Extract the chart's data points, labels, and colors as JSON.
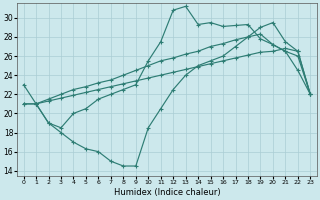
{
  "xlabel": "Humidex (Indice chaleur)",
  "bg_color": "#cce8ec",
  "grid_color": "#aacdd4",
  "line_color": "#2e7d74",
  "xlim": [
    -0.5,
    23.5
  ],
  "ylim": [
    13.5,
    31.5
  ],
  "xticks": [
    0,
    1,
    2,
    3,
    4,
    5,
    6,
    7,
    8,
    9,
    10,
    11,
    12,
    13,
    14,
    15,
    16,
    17,
    18,
    19,
    20,
    21,
    22,
    23
  ],
  "yticks": [
    14,
    16,
    18,
    20,
    22,
    24,
    26,
    28,
    30
  ],
  "curve_a_x": [
    0,
    1,
    2,
    3,
    4,
    5,
    6,
    7,
    8,
    9,
    10,
    11,
    12,
    13,
    14,
    15,
    16,
    17,
    18,
    19,
    20,
    21,
    22,
    23
  ],
  "curve_a_y": [
    23.0,
    21.0,
    19.0,
    18.5,
    20.0,
    20.5,
    21.5,
    22.0,
    22.5,
    23.0,
    25.5,
    27.5,
    30.8,
    31.2,
    29.3,
    29.5,
    29.1,
    29.2,
    29.3,
    27.8,
    27.2,
    26.5,
    24.5,
    22.0
  ],
  "curve_b_x": [
    0,
    1,
    2,
    3,
    4,
    5,
    6,
    7,
    8,
    9,
    10,
    11,
    12,
    13,
    14,
    15,
    16,
    17,
    18,
    19,
    20,
    21,
    22,
    23
  ],
  "curve_b_y": [
    21.0,
    21.0,
    21.5,
    22.0,
    22.5,
    22.8,
    23.2,
    23.5,
    24.0,
    24.5,
    25.0,
    25.5,
    25.8,
    26.2,
    26.5,
    27.0,
    27.3,
    27.7,
    28.0,
    28.3,
    27.2,
    26.5,
    26.0,
    22.0
  ],
  "curve_c_x": [
    0,
    1,
    2,
    3,
    4,
    5,
    6,
    7,
    8,
    9,
    10,
    11,
    12,
    13,
    14,
    15,
    16,
    17,
    18,
    19,
    20,
    21,
    22,
    23
  ],
  "curve_c_y": [
    21.0,
    21.0,
    21.3,
    21.6,
    21.9,
    22.2,
    22.5,
    22.8,
    23.1,
    23.4,
    23.7,
    24.0,
    24.3,
    24.6,
    24.9,
    25.2,
    25.5,
    25.8,
    26.1,
    26.4,
    26.5,
    26.8,
    26.5,
    22.0
  ],
  "curve_d_x": [
    1,
    2,
    3,
    4,
    5,
    6,
    7,
    8,
    9,
    10,
    11,
    12,
    13,
    14,
    15,
    16,
    17,
    18,
    19,
    20,
    21,
    22,
    23
  ],
  "curve_d_y": [
    21.0,
    19.0,
    18.0,
    17.0,
    16.3,
    16.0,
    15.0,
    14.5,
    14.5,
    18.5,
    20.5,
    22.5,
    24.0,
    25.0,
    25.5,
    26.0,
    27.0,
    28.0,
    29.0,
    29.5,
    27.5,
    26.5,
    22.0
  ]
}
